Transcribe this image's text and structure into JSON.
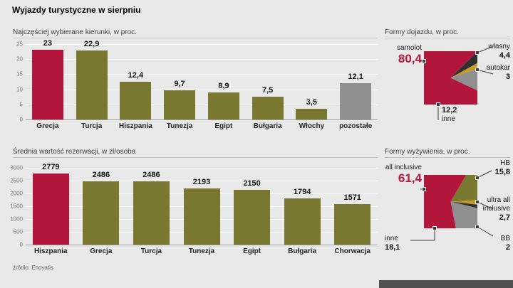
{
  "page": {
    "title": "Wyjazdy turystyczne w sierpniu",
    "source": "źródło: Enovatis"
  },
  "colors": {
    "red": "#b2163a",
    "olive": "#787830",
    "gray": "#8f8f8f",
    "gold": "#c49b26",
    "dark": "#2f2f2f"
  },
  "chart_data": [
    {
      "type": "bar",
      "title": "Najczęściej wybierane kierunki, w proc.",
      "categories": [
        "Grecja",
        "Turcja",
        "Hiszpania",
        "Tunezja",
        "Egipt",
        "Bułgaria",
        "Włochy",
        "pozostałe"
      ],
      "values": [
        23,
        22.9,
        12.4,
        9.7,
        8.9,
        7.5,
        3.5,
        12.1
      ],
      "value_labels": [
        "23",
        "22,9",
        "12,4",
        "9,7",
        "8,9",
        "7,5",
        "3,5",
        "12,1"
      ],
      "ylim": [
        0,
        25
      ],
      "yticks": [
        0,
        5,
        10,
        15,
        20,
        25
      ],
      "grid": true,
      "bar_colors": [
        "red",
        "olive",
        "olive",
        "olive",
        "olive",
        "olive",
        "olive",
        "gray"
      ]
    },
    {
      "type": "bar",
      "title": "Średnia wartość rezerwacji, w zł/osoba",
      "categories": [
        "Hiszpania",
        "Grecja",
        "Turcja",
        "Tunezja",
        "Egipt",
        "Bułgaria",
        "Chorwacja"
      ],
      "values": [
        2779,
        2486,
        2486,
        2193,
        2150,
        1794,
        1571
      ],
      "value_labels": [
        "2779",
        "2486",
        "2486",
        "2193",
        "2150",
        "1794",
        "1571"
      ],
      "ylim": [
        0,
        3000
      ],
      "yticks": [
        0,
        500,
        1000,
        1500,
        2000,
        2500,
        3000
      ],
      "grid": true,
      "bar_colors": [
        "red",
        "olive",
        "olive",
        "olive",
        "olive",
        "olive",
        "olive"
      ]
    },
    {
      "type": "pie",
      "title": "Formy dojazdu, w proc.",
      "start_deg": -45,
      "legend_position": "callouts",
      "slices": [
        {
          "label": "własny",
          "value": 4.4,
          "value_label": "4,4",
          "color": "dark"
        },
        {
          "label": "autokar",
          "value": 3,
          "value_label": "3",
          "color": "gold"
        },
        {
          "label": "inne",
          "value": 12.2,
          "value_label": "12,2",
          "color": "gray"
        },
        {
          "label": "samolot",
          "value": 80.4,
          "value_label": "80,4",
          "color": "red"
        }
      ]
    },
    {
      "type": "pie",
      "title": "Formy wyżywienia, w proc.",
      "start_deg": -60,
      "legend_position": "callouts",
      "slices": [
        {
          "label": "HB",
          "value": 15.8,
          "value_label": "15,8",
          "color": "olive"
        },
        {
          "label": "ultra all inclusive",
          "value": 2.7,
          "value_label": "2,7",
          "color": "gold",
          "label_lines": [
            "ultra all",
            "inclusive"
          ]
        },
        {
          "label": "BB",
          "value": 2,
          "value_label": "2",
          "color": "dark"
        },
        {
          "label": "inne",
          "value": 18.1,
          "value_label": "18,1",
          "color": "gray"
        },
        {
          "label": "all inclusive",
          "value": 61.4,
          "value_label": "61,4",
          "color": "red"
        }
      ]
    }
  ]
}
